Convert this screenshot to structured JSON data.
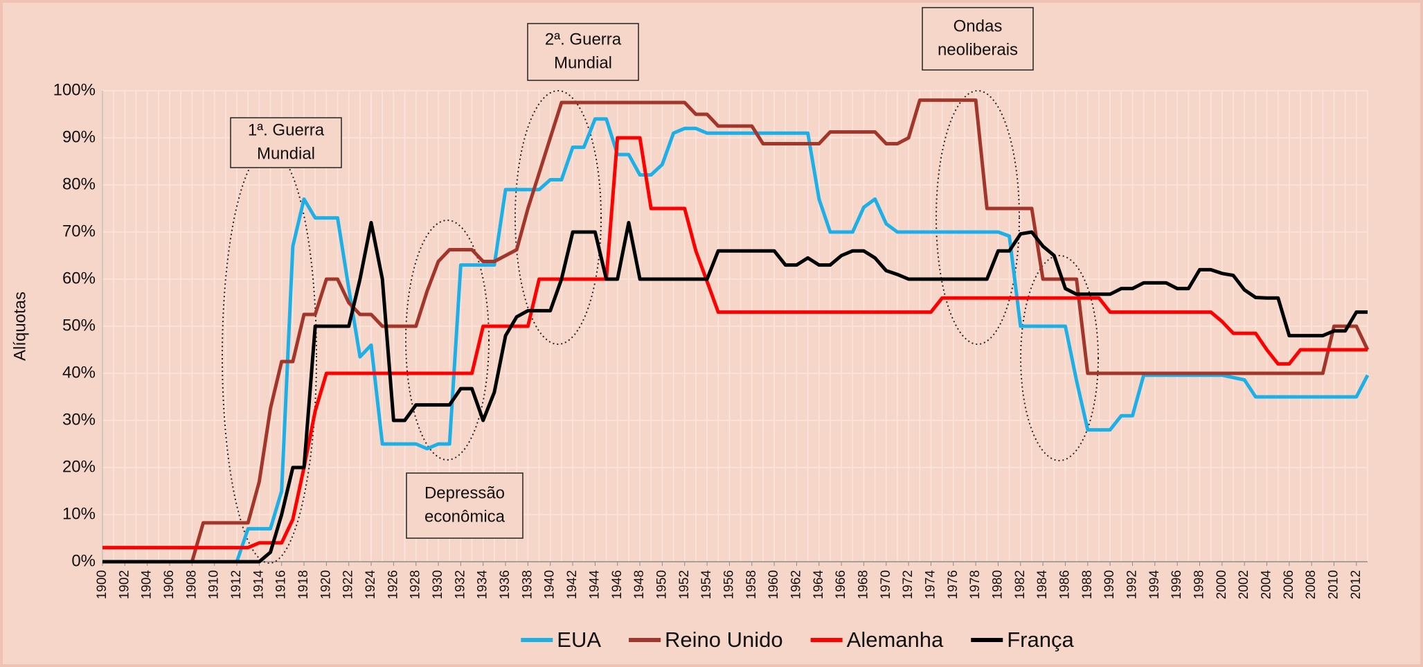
{
  "chart_data": {
    "type": "line",
    "y_label": "Alíquotas",
    "x": [
      1900,
      1901,
      1902,
      1903,
      1904,
      1905,
      1906,
      1907,
      1908,
      1909,
      1910,
      1911,
      1912,
      1913,
      1914,
      1915,
      1916,
      1917,
      1918,
      1919,
      1920,
      1921,
      1922,
      1923,
      1924,
      1925,
      1926,
      1927,
      1928,
      1929,
      1930,
      1931,
      1932,
      1933,
      1934,
      1935,
      1936,
      1937,
      1938,
      1939,
      1940,
      1941,
      1942,
      1943,
      1944,
      1945,
      1946,
      1947,
      1948,
      1949,
      1950,
      1951,
      1952,
      1953,
      1954,
      1955,
      1956,
      1957,
      1958,
      1959,
      1960,
      1961,
      1962,
      1963,
      1964,
      1965,
      1966,
      1967,
      1968,
      1969,
      1970,
      1971,
      1972,
      1973,
      1974,
      1975,
      1976,
      1977,
      1978,
      1979,
      1980,
      1981,
      1982,
      1983,
      1984,
      1985,
      1986,
      1987,
      1988,
      1989,
      1990,
      1991,
      1992,
      1993,
      1994,
      1995,
      1996,
      1997,
      1998,
      1999,
      2000,
      2001,
      2002,
      2003,
      2004,
      2005,
      2006,
      2007,
      2008,
      2009,
      2010,
      2011,
      2012,
      2013
    ],
    "xlim": [
      1900,
      2013
    ],
    "xticks": [
      1900,
      1902,
      1904,
      1906,
      1908,
      1910,
      1912,
      1914,
      1916,
      1918,
      1920,
      1922,
      1924,
      1926,
      1928,
      1930,
      1932,
      1934,
      1936,
      1938,
      1940,
      1942,
      1944,
      1946,
      1948,
      1950,
      1952,
      1954,
      1956,
      1958,
      1960,
      1962,
      1964,
      1966,
      1968,
      1970,
      1972,
      1974,
      1976,
      1978,
      1980,
      1982,
      1984,
      1986,
      1988,
      1990,
      1992,
      1994,
      1996,
      1998,
      2000,
      2002,
      2004,
      2006,
      2008,
      2010,
      2012
    ],
    "ylim": [
      0,
      100
    ],
    "yticks": [
      {
        "value": 0,
        "label": "0%"
      },
      {
        "value": 10,
        "label": "10%"
      },
      {
        "value": 20,
        "label": "20%"
      },
      {
        "value": 30,
        "label": "30%"
      },
      {
        "value": 40,
        "label": "40%"
      },
      {
        "value": 50,
        "label": "50%"
      },
      {
        "value": 60,
        "label": "60%"
      },
      {
        "value": 70,
        "label": "70%"
      },
      {
        "value": 80,
        "label": "80%"
      },
      {
        "value": 90,
        "label": "90%"
      },
      {
        "value": 100,
        "label": "100%"
      }
    ],
    "grid": true,
    "legend": "bottom",
    "series": [
      {
        "name": "EUA",
        "color": "#1cb0e8",
        "values": [
          0,
          0,
          0,
          0,
          0,
          0,
          0,
          0,
          0,
          0,
          0,
          0,
          0,
          7,
          7,
          7,
          15,
          67,
          77,
          73,
          73,
          73,
          58,
          43.5,
          46,
          25,
          25,
          25,
          25,
          24,
          25,
          25,
          63,
          63,
          63,
          63,
          79,
          79,
          79,
          79,
          81.1,
          81.1,
          88,
          88,
          94,
          94,
          86.45,
          86.45,
          82.13,
          82.13,
          84.36,
          91,
          92,
          92,
          91,
          91,
          91,
          91,
          91,
          91,
          91,
          91,
          91,
          91,
          77,
          70,
          70,
          70,
          75.25,
          77,
          71.75,
          70,
          70,
          70,
          70,
          70,
          70,
          70,
          70,
          70,
          70,
          69.13,
          50,
          50,
          50,
          50,
          50,
          38.5,
          28,
          28,
          28,
          31,
          31,
          39.6,
          39.6,
          39.6,
          39.6,
          39.6,
          39.6,
          39.6,
          39.6,
          39.1,
          38.6,
          35,
          35,
          35,
          35,
          35,
          35,
          35,
          35,
          35,
          35,
          39.6
        ]
      },
      {
        "name": "Reino Unido",
        "color": "#a3362b",
        "values": [
          0,
          0,
          0,
          0,
          0,
          0,
          0,
          0,
          0,
          8.25,
          8.25,
          8.25,
          8.25,
          8.25,
          17,
          32.5,
          42.5,
          42.5,
          52.5,
          52.5,
          60,
          60,
          55,
          52.5,
          52.5,
          50,
          50,
          50,
          50,
          57.5,
          63.75,
          66.25,
          66.25,
          66.25,
          63.75,
          63.75,
          65,
          66.25,
          75,
          82.5,
          90,
          97.5,
          97.5,
          97.5,
          97.5,
          97.5,
          97.5,
          97.5,
          97.5,
          97.5,
          97.5,
          97.5,
          97.5,
          95,
          95,
          92.5,
          92.5,
          92.5,
          92.5,
          88.75,
          88.75,
          88.75,
          88.75,
          88.75,
          88.75,
          91.25,
          91.25,
          91.25,
          91.25,
          91.25,
          88.75,
          88.75,
          90,
          98,
          98,
          98,
          98,
          98,
          98,
          75,
          75,
          75,
          75,
          75,
          60,
          60,
          60,
          60,
          40,
          40,
          40,
          40,
          40,
          40,
          40,
          40,
          40,
          40,
          40,
          40,
          40,
          40,
          40,
          40,
          40,
          40,
          40,
          40,
          40,
          40,
          50,
          50,
          50,
          45
        ]
      },
      {
        "name": "Alemanha",
        "color": "#ff0000",
        "values": [
          3,
          3,
          3,
          3,
          3,
          3,
          3,
          3,
          3,
          3,
          3,
          3,
          3,
          3,
          4,
          4,
          4,
          9,
          20,
          32,
          40,
          40,
          40,
          40,
          40,
          40,
          40,
          40,
          40,
          40,
          40,
          40,
          40,
          40,
          50,
          50,
          50,
          50,
          50,
          60,
          60,
          60,
          60,
          60,
          60,
          60,
          90,
          90,
          90,
          75,
          75,
          75,
          75,
          66,
          59.5,
          53,
          53,
          53,
          53,
          53,
          53,
          53,
          53,
          53,
          53,
          53,
          53,
          53,
          53,
          53,
          53,
          53,
          53,
          53,
          53,
          56,
          56,
          56,
          56,
          56,
          56,
          56,
          56,
          56,
          56,
          56,
          56,
          56,
          56,
          56,
          53,
          53,
          53,
          53,
          53,
          53,
          53,
          53,
          53,
          53,
          51,
          48.5,
          48.5,
          48.5,
          45,
          42,
          42,
          45,
          45,
          45,
          45,
          45,
          45,
          45
        ]
      },
      {
        "name": "França",
        "color": "#000000",
        "values": [
          0,
          0,
          0,
          0,
          0,
          0,
          0,
          0,
          0,
          0,
          0,
          0,
          0,
          0,
          0,
          2,
          10,
          20,
          20,
          50,
          50,
          50,
          50,
          60,
          72,
          60,
          30,
          30,
          33.3,
          33.3,
          33.3,
          33.3,
          36.75,
          36.75,
          30,
          36,
          48,
          52,
          53.3,
          53.3,
          53.3,
          60,
          70,
          70,
          70,
          60,
          60,
          72,
          60,
          60,
          60,
          60,
          60,
          60,
          60,
          66,
          66,
          66,
          66,
          66,
          66,
          63,
          63,
          64.5,
          63,
          63,
          65,
          66,
          66,
          64.5,
          61.8,
          61,
          60,
          60,
          60,
          60,
          60,
          60,
          60,
          60,
          66,
          66,
          69.6,
          70,
          67,
          65,
          58,
          56.8,
          56.8,
          56.8,
          56.8,
          58,
          58,
          59.2,
          59.2,
          59.2,
          58,
          58,
          62,
          62,
          61.2,
          60.8,
          57.7,
          56.1,
          56,
          56,
          48,
          48,
          48,
          48,
          49,
          49,
          53,
          53
        ]
      }
    ],
    "annotations": [
      {
        "lines": [
          "1ª. Guerra",
          "Mundial"
        ]
      },
      {
        "lines": [
          "2ª. Guerra",
          "Mundial"
        ]
      },
      {
        "lines": [
          "Depressão",
          "econômica"
        ]
      },
      {
        "lines": [
          "Ondas",
          "neoliberais"
        ]
      }
    ]
  }
}
